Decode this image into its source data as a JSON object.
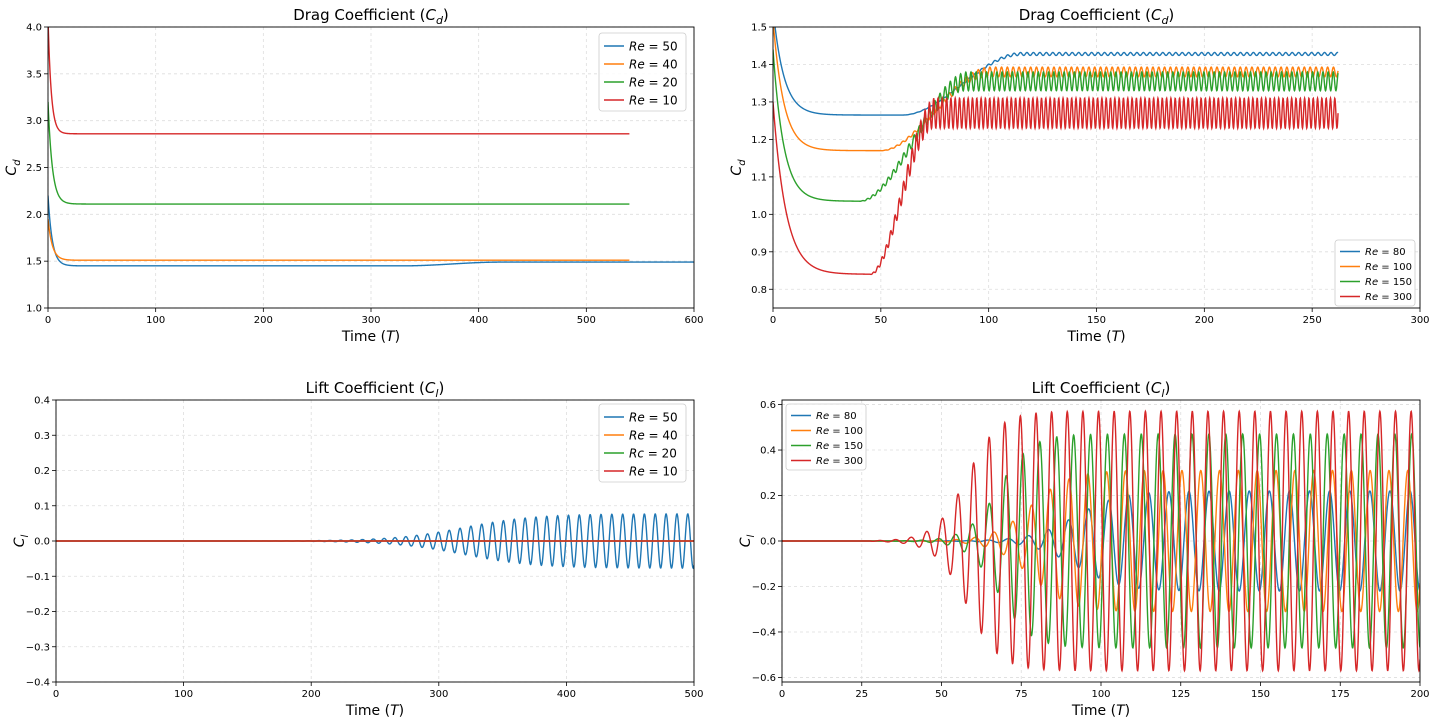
{
  "chart_data": [
    {
      "id": "drag_low",
      "type": "line",
      "title": "Drag Coefficient (C_d)",
      "title_parts": [
        "Drag Coefficient (",
        "C",
        "d",
        ")"
      ],
      "xlabel_parts": [
        "Time (",
        "T",
        ")"
      ],
      "ylabel_parts": [
        "C",
        "d"
      ],
      "xlim": [
        0,
        600
      ],
      "ylim": [
        1.0,
        4.0
      ],
      "xticks": [
        "0",
        "100",
        "200",
        "300",
        "400",
        "500",
        "600"
      ],
      "xtick_values": [
        0,
        100,
        200,
        300,
        400,
        500,
        600
      ],
      "yticks": [
        "1.0",
        "1.5",
        "2.0",
        "2.5",
        "3.0",
        "3.5",
        "4.0"
      ],
      "ytick_values": [
        1.0,
        1.5,
        2.0,
        2.5,
        3.0,
        3.5,
        4.0
      ],
      "grid": true,
      "legend_position": "top-right",
      "series": [
        {
          "name": "Re = 50",
          "label_parts": [
            "Re",
            " = 50"
          ],
          "color": "#1f77b4",
          "kind": "drag",
          "t_end": 600,
          "start": 2.2,
          "mid": 1.45,
          "mid_until": 330,
          "final": 1.49,
          "transition_end": 420,
          "decay": 4,
          "osc_amp": 0
        },
        {
          "name": "Re = 40",
          "label_parts": [
            "Re",
            " = 40"
          ],
          "color": "#ff7f0e",
          "kind": "drag",
          "t_end": 540,
          "start": 1.95,
          "mid": 1.51,
          "mid_until": 540,
          "final": 1.51,
          "transition_end": 540,
          "decay": 4,
          "osc_amp": 0
        },
        {
          "name": "Re = 20",
          "label_parts": [
            "Re",
            " = 20"
          ],
          "color": "#2ca02c",
          "kind": "drag",
          "t_end": 540,
          "start": 3.2,
          "mid": 2.11,
          "mid_until": 540,
          "final": 2.11,
          "transition_end": 540,
          "decay": 4,
          "osc_amp": 0
        },
        {
          "name": "Re = 10",
          "label_parts": [
            "Re",
            " = 10"
          ],
          "color": "#d62728",
          "kind": "drag",
          "t_end": 540,
          "start": 4.1,
          "mid": 2.86,
          "mid_until": 540,
          "final": 2.86,
          "transition_end": 540,
          "decay": 3,
          "osc_amp": 0
        }
      ]
    },
    {
      "id": "drag_high",
      "type": "line",
      "title": "Drag Coefficient (C_d)",
      "title_parts": [
        "Drag Coefficient (",
        "C",
        "d",
        ")"
      ],
      "xlabel_parts": [
        "Time (",
        "T",
        ")"
      ],
      "ylabel_parts": [
        "C",
        "d"
      ],
      "xlim": [
        0,
        300
      ],
      "ylim": [
        0.75,
        1.5
      ],
      "xticks": [
        "0",
        "50",
        "100",
        "150",
        "200",
        "250",
        "300"
      ],
      "xtick_values": [
        0,
        50,
        100,
        150,
        200,
        250,
        300
      ],
      "yticks": [
        "0.8",
        "0.9",
        "1.0",
        "1.1",
        "1.2",
        "1.3",
        "1.4",
        "1.5"
      ],
      "ytick_values": [
        0.8,
        0.9,
        1.0,
        1.1,
        1.2,
        1.3,
        1.4,
        1.5
      ],
      "grid": true,
      "legend_position": "bottom-right",
      "series": [
        {
          "name": "Re = 80",
          "label_parts": [
            "Re",
            " = 80"
          ],
          "color": "#1f77b4",
          "kind": "drag",
          "t_end": 262,
          "start": 1.55,
          "mid": 1.265,
          "mid_until": 60,
          "final": 1.428,
          "transition_end": 115,
          "decay": 5,
          "osc_amp": 0.004,
          "period": 3.0
        },
        {
          "name": "Re = 100",
          "label_parts": [
            "Re",
            " = 100"
          ],
          "color": "#ff7f0e",
          "kind": "drag",
          "t_end": 262,
          "start": 1.52,
          "mid": 1.17,
          "mid_until": 50,
          "final": 1.38,
          "transition_end": 100,
          "decay": 5,
          "osc_amp": 0.013,
          "period": 2.7
        },
        {
          "name": "Re = 150",
          "label_parts": [
            "Re",
            " = 150"
          ],
          "color": "#2ca02c",
          "kind": "drag",
          "t_end": 262,
          "start": 1.44,
          "mid": 1.035,
          "mid_until": 40,
          "final": 1.355,
          "transition_end": 90,
          "decay": 5,
          "osc_amp": 0.025,
          "period": 2.4
        },
        {
          "name": "Re = 300",
          "label_parts": [
            "Re",
            " = 300"
          ],
          "color": "#d62728",
          "kind": "drag",
          "t_end": 262,
          "start": 1.3,
          "mid": 0.84,
          "mid_until": 45,
          "final": 1.27,
          "transition_end": 75,
          "decay": 6,
          "osc_amp": 0.04,
          "period": 2.0
        }
      ]
    },
    {
      "id": "lift_low",
      "type": "line",
      "title": "Lift Coefficient (C_l)",
      "title_parts": [
        "Lift Coefficient (",
        "C",
        "l",
        ")"
      ],
      "xlabel_parts": [
        "Time (",
        "T",
        ")"
      ],
      "ylabel_parts": [
        "C",
        "l"
      ],
      "xlim": [
        0,
        500
      ],
      "ylim": [
        -0.4,
        0.4
      ],
      "xticks": [
        "0",
        "100",
        "200",
        "300",
        "400",
        "500"
      ],
      "xtick_values": [
        0,
        100,
        200,
        300,
        400,
        500
      ],
      "yticks": [
        "−0.4",
        "−0.3",
        "−0.2",
        "−0.1",
        "0.0",
        "0.1",
        "0.2",
        "0.3",
        "0.4"
      ],
      "ytick_values": [
        -0.4,
        -0.3,
        -0.2,
        -0.1,
        0.0,
        0.1,
        0.2,
        0.3,
        0.4
      ],
      "grid": true,
      "legend_position": "top-right",
      "series": [
        {
          "name": "Re = 50",
          "label_parts": [
            "Re",
            " = 50"
          ],
          "color": "#1f77b4",
          "kind": "lift",
          "t_end": 500,
          "amp": 0.077,
          "growth_center": 320,
          "growth_width": 28,
          "period": 8.5,
          "onset": 150
        },
        {
          "name": "Re = 40",
          "label_parts": [
            "Re",
            " = 40"
          ],
          "color": "#ff7f0e",
          "kind": "lift",
          "t_end": 500,
          "amp": 0,
          "growth_center": 0,
          "growth_width": 1,
          "period": 10,
          "onset": 0
        },
        {
          "name": "Rc = 20",
          "label_parts": [
            "Rc",
            " = 20"
          ],
          "color": "#2ca02c",
          "kind": "lift",
          "t_end": 500,
          "amp": 0,
          "growth_center": 0,
          "growth_width": 1,
          "period": 10,
          "onset": 0
        },
        {
          "name": "Re = 10",
          "label_parts": [
            "Re",
            " = 10"
          ],
          "color": "#d62728",
          "kind": "lift",
          "t_end": 500,
          "amp": 0,
          "growth_center": 0,
          "growth_width": 1,
          "period": 10,
          "onset": 0
        }
      ]
    },
    {
      "id": "lift_high",
      "type": "line",
      "title": "Lift Coefficient (C_l)",
      "title_parts": [
        "Lift Coefficient (",
        "C",
        "l",
        ")"
      ],
      "xlabel_parts": [
        "Time (",
        "T",
        ")"
      ],
      "ylabel_parts": [
        "C",
        "l"
      ],
      "xlim": [
        0,
        200
      ],
      "ylim": [
        -0.62,
        0.62
      ],
      "xticks": [
        "0",
        "25",
        "50",
        "75",
        "100",
        "125",
        "150",
        "175",
        "200"
      ],
      "xtick_values": [
        0,
        25,
        50,
        75,
        100,
        125,
        150,
        175,
        200
      ],
      "yticks": [
        "−0.6",
        "−0.4",
        "−0.2",
        "0.0",
        "0.2",
        "0.4",
        "0.6"
      ],
      "ytick_values": [
        -0.6,
        -0.4,
        -0.2,
        0.0,
        0.2,
        0.4,
        0.6
      ],
      "grid": true,
      "legend_position": "top-left",
      "series": [
        {
          "name": "Re = 80",
          "label_parts": [
            "Re",
            " = 80"
          ],
          "color": "#1f77b4",
          "kind": "lift",
          "t_end": 200,
          "amp": 0.22,
          "growth_center": 92,
          "growth_width": 7,
          "period": 6.3,
          "onset": 45
        },
        {
          "name": "Re = 100",
          "label_parts": [
            "Re",
            " = 100"
          ],
          "color": "#ff7f0e",
          "kind": "lift",
          "t_end": 200,
          "amp": 0.31,
          "growth_center": 78,
          "growth_width": 6,
          "period": 5.9,
          "onset": 40
        },
        {
          "name": "Re = 150",
          "label_parts": [
            "Re",
            " = 150"
          ],
          "color": "#2ca02c",
          "kind": "lift",
          "t_end": 200,
          "amp": 0.47,
          "growth_center": 68,
          "growth_width": 5,
          "period": 5.3,
          "onset": 35
        },
        {
          "name": "Re = 300",
          "label_parts": [
            "Re",
            " = 300"
          ],
          "color": "#d62728",
          "kind": "lift",
          "t_end": 200,
          "amp": 0.57,
          "growth_center": 58,
          "growth_width": 5,
          "period": 4.9,
          "onset": 28
        }
      ]
    }
  ]
}
